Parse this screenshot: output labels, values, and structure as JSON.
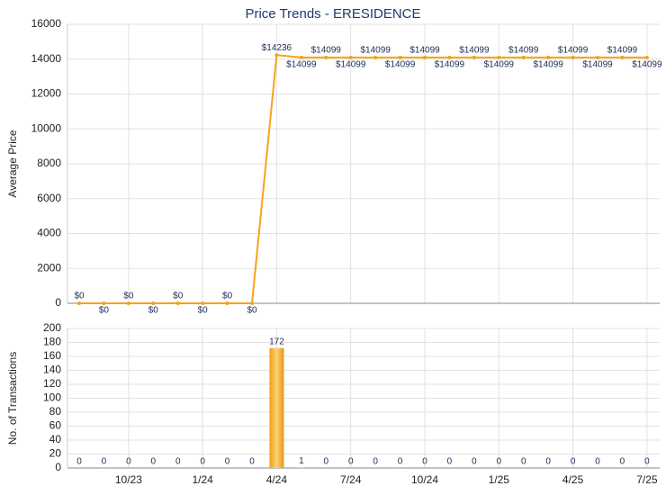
{
  "chart_data": [
    {
      "type": "line",
      "title": "Price Trends - ERESIDENCE",
      "y_label": "Average Price",
      "values": [
        0,
        0,
        0,
        0,
        0,
        0,
        0,
        0,
        14236,
        14099,
        14099,
        14099,
        14099,
        14099,
        14099,
        14099,
        14099,
        14099,
        14099,
        14099,
        14099,
        14099,
        14099,
        14099
      ],
      "value_labels": [
        "$0",
        "$0",
        "$0",
        "$0",
        "$0",
        "$0",
        "$0",
        "$0",
        "$14236",
        "$14099",
        "$14099",
        "$14099",
        "$14099",
        "$14099",
        "$14099",
        "$14099",
        "$14099",
        "$14099",
        "$14099",
        "$14099",
        "$14099",
        "$14099",
        "$14099",
        "$14099"
      ],
      "color": "#f5a31a",
      "ylim": [
        0,
        16000
      ],
      "yticks": [
        0,
        2000,
        4000,
        6000,
        8000,
        10000,
        12000,
        14000,
        16000
      ],
      "grid": true
    },
    {
      "type": "bar",
      "y_label": "No. of Transactions",
      "categories": [
        null,
        null,
        "10/23",
        null,
        null,
        "1/24",
        null,
        null,
        "4/24",
        null,
        null,
        "7/24",
        null,
        null,
        "10/24",
        null,
        null,
        "1/25",
        null,
        null,
        "4/25",
        null,
        null,
        "7/25"
      ],
      "values": [
        0,
        0,
        0,
        0,
        0,
        0,
        0,
        0,
        172,
        1,
        0,
        0,
        0,
        0,
        0,
        0,
        0,
        0,
        0,
        0,
        0,
        0,
        0,
        0
      ],
      "color": "#f5a31a",
      "ylim": [
        0,
        200
      ],
      "yticks": [
        0,
        20,
        40,
        60,
        80,
        100,
        120,
        140,
        160,
        180,
        200
      ],
      "grid": true
    }
  ]
}
